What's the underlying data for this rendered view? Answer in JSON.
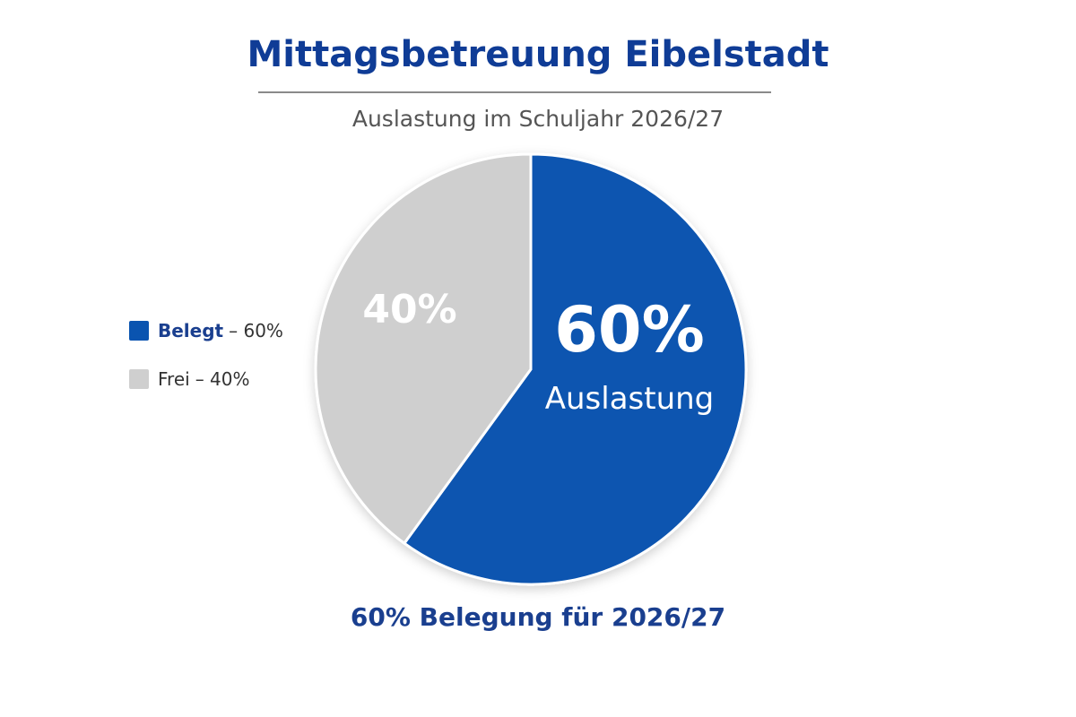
{
  "colors": {
    "title": "#0f3c96",
    "belegt": "#0a54b0",
    "frei": "#cfcfcf",
    "footer": "#1a3f8f"
  },
  "title": "Mittagsbetreuung Eibelstadt",
  "subtitle": "Auslastung im Schuljahr 2026/27",
  "legend": {
    "items": [
      {
        "label": "Belegt",
        "value_text": "– 60%"
      },
      {
        "label": "Frei",
        "value_text": "– 40%"
      }
    ]
  },
  "footer": "60% Belegung für 2026/27",
  "chart_data": {
    "type": "pie",
    "series": [
      {
        "name": "Belegt",
        "value": 60,
        "label": "60%",
        "sublabel": "Auslastung"
      },
      {
        "name": "Frei",
        "value": 40,
        "label": "40%"
      }
    ],
    "legend_position": "left"
  }
}
